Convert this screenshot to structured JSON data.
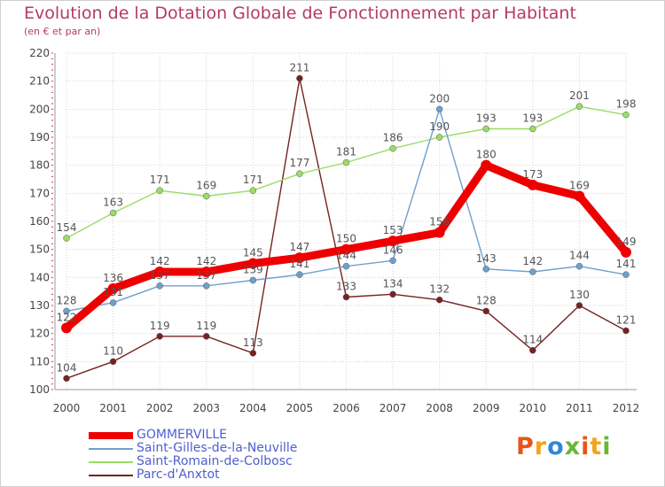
{
  "chart_data": {
    "type": "line",
    "title": "Evolution de la Dotation Globale de Fonctionnement par Habitant",
    "subtitle": "(en € et par an)",
    "xlabel": "",
    "ylabel": "",
    "x": [
      "2000",
      "2001",
      "2002",
      "2003",
      "2004",
      "2005",
      "2006",
      "2007",
      "2008",
      "2009",
      "2010",
      "2011",
      "2012"
    ],
    "ylim": [
      100,
      220
    ],
    "yticks": [
      100,
      110,
      120,
      130,
      140,
      150,
      160,
      170,
      180,
      190,
      200,
      210,
      220
    ],
    "grid": true,
    "legend_position": "bottom-left",
    "series": [
      {
        "name": "GOMMERVILLE",
        "color": "#ee0000",
        "values": [
          122,
          136,
          142,
          142,
          145,
          147,
          150,
          153,
          156,
          180,
          173,
          169,
          149
        ]
      },
      {
        "name": "Saint-Gilles-de-la-Neuville",
        "color": "#6fa0cc",
        "values": [
          128,
          131,
          137,
          137,
          139,
          141,
          144,
          146,
          200,
          143,
          142,
          144,
          141
        ]
      },
      {
        "name": "Saint-Romain-de-Colbosc",
        "color": "#99dd66",
        "values": [
          154,
          163,
          171,
          169,
          171,
          177,
          181,
          186,
          190,
          193,
          193,
          201,
          198
        ]
      },
      {
        "name": "Parc-d'Anxtot",
        "color": "#772222",
        "values": [
          104,
          110,
          119,
          119,
          113,
          211,
          133,
          134,
          132,
          128,
          114,
          130,
          121
        ]
      }
    ]
  },
  "logo": {
    "text": "Proxiti",
    "colors": [
      "#e8541c",
      "#f5a21b",
      "#2f89d6",
      "#6bb636"
    ]
  }
}
